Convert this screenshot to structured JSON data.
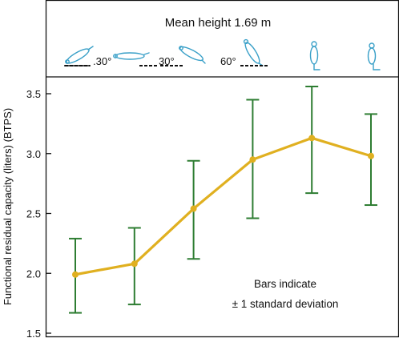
{
  "chart_data": {
    "type": "line",
    "title": "Mean height 1.69 m",
    "ylabel": "Functional residual capacity (liters) (BTPS)",
    "xlabel": "",
    "ylim": [
      1.5,
      3.6
    ],
    "y_ticks": [
      "1.5",
      "2.0",
      "2.5",
      "3.0",
      "3.5"
    ],
    "positions": [
      {
        "label": "",
        "description": "head down 30°",
        "value": 1.99,
        "sd_low": 1.67,
        "sd_high": 2.29
      },
      {
        "label": "",
        "description": "supine",
        "value": 2.08,
        "sd_low": 1.74,
        "sd_high": 2.38
      },
      {
        "label": "",
        "description": "head up 30°",
        "value": 2.54,
        "sd_low": 2.12,
        "sd_high": 2.94
      },
      {
        "label": "",
        "description": "head up 60°",
        "value": 2.95,
        "sd_low": 2.46,
        "sd_high": 3.45
      },
      {
        "label": "",
        "description": "upright",
        "value": 3.13,
        "sd_low": 2.67,
        "sd_high": 3.56
      },
      {
        "label": "",
        "description": "sitting",
        "value": 2.98,
        "sd_low": 2.57,
        "sd_high": 3.33
      }
    ],
    "angle_labels": [
      ".30°",
      "30°",
      "60°"
    ],
    "annotation": [
      "Bars indicate",
      "± 1 standard deviation"
    ],
    "line_color": "#E0B020",
    "error_bar_color": "#2E7D32",
    "icon_color": "#3AA0C8"
  }
}
